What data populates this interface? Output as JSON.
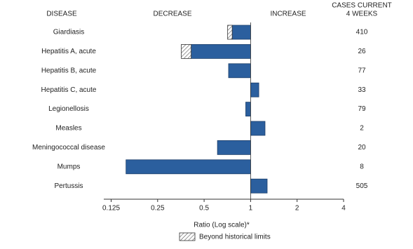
{
  "chart_data": {
    "type": "bar",
    "orientation": "horizontal",
    "headers": {
      "disease": "DISEASE",
      "decrease": "DECREASE",
      "increase": "INCREASE",
      "cases": [
        "CASES CURRENT",
        "4 WEEKS"
      ]
    },
    "categories": [
      "Giardiasis",
      "Hepatitis A, acute",
      "Hepatitis B, acute",
      "Hepatitis C, acute",
      "Legionellosis",
      "Measles",
      "Meningococcal disease",
      "Mumps",
      "Pertussis"
    ],
    "values": [
      0.71,
      0.356,
      0.72,
      1.13,
      0.93,
      1.24,
      0.61,
      0.156,
      1.28
    ],
    "historical_limits": [
      0.76,
      0.412,
      null,
      null,
      null,
      null,
      null,
      null,
      null
    ],
    "cases": [
      410,
      26,
      77,
      33,
      79,
      2,
      20,
      8,
      505
    ],
    "color": "#2b5f9e",
    "xlim": [
      0.112,
      4
    ],
    "xticks": [
      0.125,
      0.25,
      0.5,
      1,
      2,
      4
    ],
    "log_scale": true,
    "xlabel": "Ratio (Log scale)*",
    "legend": "Beyond historical limits"
  }
}
